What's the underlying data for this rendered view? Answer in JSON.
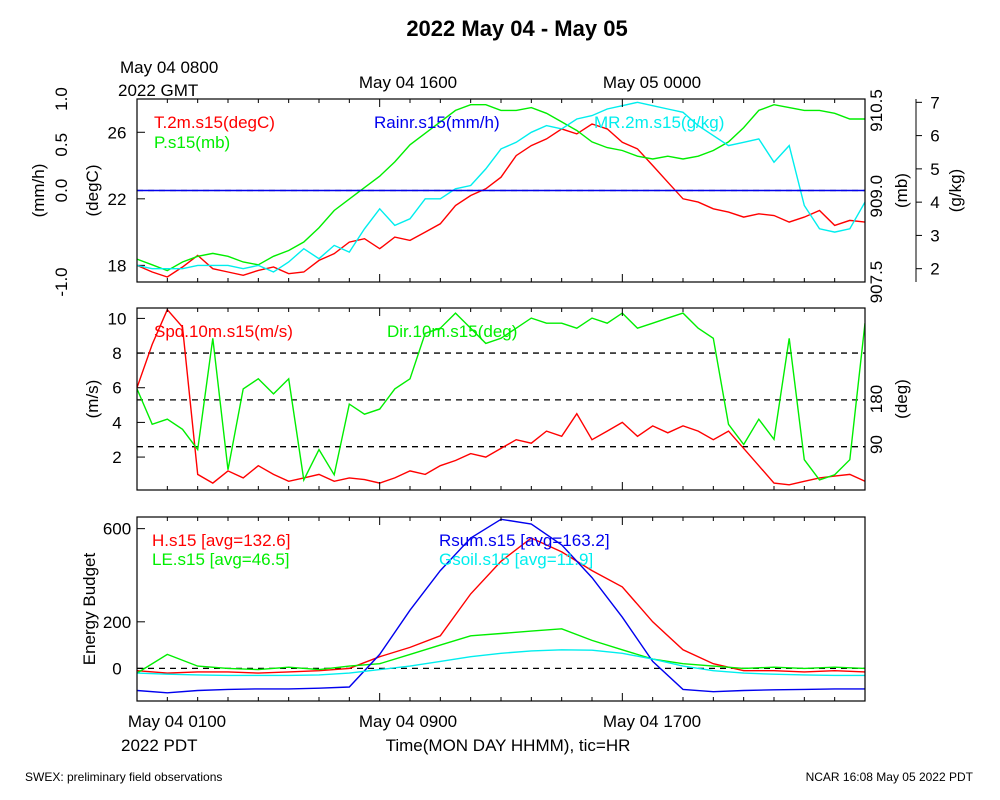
{
  "title": "2022 May 04 - May 05",
  "top_axis": {
    "start_label_line1": "May 04 0800",
    "start_label_line2": "2022 GMT",
    "tick_labels": [
      "May 04 1600",
      "May 05 0000"
    ]
  },
  "bottom_axis": {
    "tick_labels": [
      "May 04 0100",
      "May 04 0900",
      "May 04 1700"
    ],
    "start_label_line2": "2022 PDT",
    "xlabel": "Time(MON DAY HHMM), tic=HR"
  },
  "footer": {
    "left": "SWEX: preliminary field observations",
    "right": "NCAR 16:08 May 05 2022 PDT"
  },
  "colors": {
    "red": "#ff0000",
    "green": "#00ee00",
    "blue": "#0000ee",
    "cyan": "#00eeee",
    "black": "#000000"
  },
  "chart_data": [
    {
      "type": "line",
      "panel": "meteorology",
      "x_unit": "hours since May 04 0100 PDT",
      "xlim": [
        0,
        24
      ],
      "left_axes": [
        {
          "label": "(mm/h)",
          "ylim": [
            -1.0,
            1.0
          ],
          "ticks": [
            "-1.0",
            "0.0",
            "0.5",
            "1.0"
          ]
        },
        {
          "label": "(degC)",
          "ylim": [
            17,
            28
          ],
          "ticks": [
            "18",
            "22",
            "26"
          ]
        }
      ],
      "right_axes": [
        {
          "label": "(mb)",
          "ylim": [
            907.5,
            910.7
          ],
          "ticks": [
            "907.5",
            "909.0",
            "910.5"
          ]
        },
        {
          "label": "(g/kg)",
          "ylim": [
            1.6,
            7.1
          ],
          "ticks": [
            "2",
            "3",
            "4",
            "5",
            "6",
            "7"
          ]
        }
      ],
      "reference_lines": [
        {
          "y": 0.0,
          "axis": "(mm/h)",
          "style": "dashed"
        }
      ],
      "series": [
        {
          "name": "T.2m.s15(degC)",
          "axis": "(degC)",
          "color": "#ff0000",
          "x": [
            0,
            0.5,
            1,
            1.5,
            2,
            2.5,
            3,
            3.5,
            4,
            4.5,
            5,
            5.5,
            6,
            6.5,
            7,
            7.5,
            8,
            8.5,
            9,
            9.5,
            10,
            10.5,
            11,
            11.5,
            12,
            12.5,
            13,
            13.5,
            14,
            14.5,
            15,
            15.5,
            16,
            16.5,
            17,
            17.5,
            18,
            18.5,
            19,
            19.5,
            20,
            20.5,
            21,
            21.5,
            22,
            22.5,
            23,
            23.5,
            24
          ],
          "values": [
            18.0,
            17.6,
            17.3,
            17.9,
            18.6,
            17.8,
            17.6,
            17.4,
            17.7,
            17.9,
            17.5,
            17.6,
            18.3,
            18.7,
            19.4,
            19.6,
            19.0,
            19.7,
            19.5,
            20.0,
            20.5,
            21.6,
            22.2,
            22.6,
            23.3,
            24.6,
            25.2,
            25.6,
            26.2,
            25.9,
            26.5,
            26.2,
            25.4,
            25.0,
            24.0,
            23.0,
            22.0,
            21.8,
            21.4,
            21.2,
            20.9,
            21.1,
            21.0,
            20.6,
            20.9,
            21.3,
            20.4,
            20.7,
            20.6
          ]
        },
        {
          "name": "P.s15(mb)",
          "axis": "(mb)",
          "color": "#00ee00",
          "x": [
            0,
            0.5,
            1,
            1.5,
            2,
            2.5,
            3,
            3.5,
            4,
            4.5,
            5,
            5.5,
            6,
            6.5,
            7,
            7.5,
            8,
            8.5,
            9,
            9.5,
            10,
            10.5,
            11,
            11.5,
            12,
            12.5,
            13,
            13.5,
            14,
            14.5,
            15,
            15.5,
            16,
            16.5,
            17,
            17.5,
            18,
            18.5,
            19,
            19.5,
            20,
            20.5,
            21,
            21.5,
            22,
            22.5,
            23,
            23.5,
            24
          ],
          "values": [
            907.9,
            907.8,
            907.7,
            907.85,
            907.95,
            908.0,
            907.95,
            907.85,
            907.8,
            907.95,
            908.05,
            908.2,
            908.45,
            908.75,
            908.95,
            909.15,
            909.35,
            909.6,
            909.9,
            910.1,
            910.3,
            910.5,
            910.6,
            910.6,
            910.5,
            910.5,
            910.55,
            910.45,
            910.3,
            910.15,
            909.95,
            909.85,
            909.8,
            909.7,
            909.65,
            909.7,
            909.65,
            909.7,
            909.8,
            909.95,
            910.2,
            910.5,
            910.6,
            910.55,
            910.5,
            910.5,
            910.45,
            910.35,
            910.35
          ]
        },
        {
          "name": "MR.2m.s15(g/kg)",
          "axis": "(g/kg)",
          "color": "#00eeee",
          "x": [
            0,
            0.5,
            1,
            1.5,
            2,
            2.5,
            3,
            3.5,
            4,
            4.5,
            5,
            5.5,
            6,
            6.5,
            7,
            7.5,
            8,
            8.5,
            9,
            9.5,
            10,
            10.5,
            11,
            11.5,
            12,
            12.5,
            13,
            13.5,
            14,
            14.5,
            15,
            15.5,
            16,
            16.5,
            17,
            17.5,
            18,
            18.5,
            19,
            19.5,
            20,
            20.5,
            21,
            21.5,
            22,
            22.5,
            23,
            23.5,
            24
          ],
          "values": [
            2.1,
            2.0,
            2.0,
            2.0,
            2.1,
            2.1,
            2.1,
            2.0,
            2.1,
            1.9,
            2.2,
            2.6,
            2.3,
            2.7,
            2.5,
            3.2,
            3.8,
            3.3,
            3.5,
            4.1,
            4.1,
            4.4,
            4.5,
            5.0,
            5.6,
            5.8,
            6.1,
            6.3,
            6.2,
            6.5,
            6.6,
            6.8,
            6.9,
            7.0,
            6.9,
            6.8,
            6.7,
            6.3,
            6.0,
            5.7,
            5.8,
            5.9,
            5.2,
            5.7,
            3.9,
            3.2,
            3.1,
            3.2,
            4.0
          ]
        },
        {
          "name": "Rainr.s15(mm/h)",
          "axis": "(mm/h)",
          "color": "#0000ee",
          "x": [
            0,
            24
          ],
          "values": [
            0.0,
            0.0
          ]
        }
      ]
    },
    {
      "type": "line",
      "panel": "wind",
      "x_unit": "hours since May 04 0100 PDT",
      "xlim": [
        0,
        24
      ],
      "left_axes": [
        {
          "label": "(m/s)",
          "ylim": [
            0.1,
            10.6
          ],
          "ticks": [
            "2",
            "4",
            "6",
            "8",
            "10"
          ]
        }
      ],
      "right_axes": [
        {
          "label": "(deg)",
          "ylim": [
            0,
            360
          ],
          "ticks": [
            "90",
            "180"
          ]
        }
      ],
      "reference_lines": [
        {
          "y": 2.6,
          "axis": "(m/s)",
          "style": "dashed"
        },
        {
          "y": 5.3,
          "axis": "(m/s)",
          "style": "dashed"
        },
        {
          "y": 8.0,
          "axis": "(m/s)",
          "style": "dashed"
        }
      ],
      "series": [
        {
          "name": "Spd.10m.s15(m/s)",
          "axis": "(m/s)",
          "color": "#ff0000",
          "x": [
            0,
            0.5,
            1,
            1.5,
            2,
            2.5,
            3,
            3.5,
            4,
            4.5,
            5,
            5.5,
            6,
            6.5,
            7,
            7.5,
            8,
            8.5,
            9,
            9.5,
            10,
            10.5,
            11,
            11.5,
            12,
            12.5,
            13,
            13.5,
            14,
            14.5,
            15,
            15.5,
            16,
            16.5,
            17,
            17.5,
            18,
            18.5,
            19,
            19.5,
            20,
            20.5,
            21,
            21.5,
            22,
            22.5,
            23,
            23.5,
            24
          ],
          "values": [
            6.0,
            8.5,
            10.5,
            9.5,
            1.0,
            0.5,
            1.2,
            0.8,
            1.5,
            1.0,
            0.6,
            0.8,
            1.0,
            0.6,
            0.8,
            0.7,
            0.5,
            0.8,
            1.2,
            1.0,
            1.5,
            1.8,
            2.2,
            2.0,
            2.5,
            3.0,
            2.8,
            3.5,
            3.2,
            4.5,
            3.0,
            3.5,
            4.0,
            3.2,
            3.8,
            3.4,
            3.8,
            3.5,
            3.0,
            3.5,
            2.5,
            1.5,
            0.5,
            0.4,
            0.6,
            0.8,
            0.9,
            1.0,
            0.6
          ]
        },
        {
          "name": "Dir.10m.s15(deg)",
          "axis": "(deg)",
          "color": "#00ee00",
          "x": [
            0,
            0.5,
            1,
            1.5,
            2,
            2.5,
            3,
            3.5,
            4,
            4.5,
            5,
            5.5,
            6,
            6.5,
            7,
            7.5,
            8,
            8.5,
            9,
            9.5,
            10,
            10.5,
            11,
            11.5,
            12,
            12.5,
            13,
            13.5,
            14,
            14.5,
            15,
            15.5,
            16,
            16.5,
            17,
            17.5,
            18,
            18.5,
            19,
            19.5,
            20,
            20.5,
            21,
            21.5,
            22,
            22.5,
            23,
            23.5,
            24
          ],
          "values": [
            200,
            130,
            140,
            120,
            80,
            300,
            40,
            200,
            220,
            190,
            220,
            20,
            80,
            30,
            170,
            150,
            160,
            200,
            220,
            310,
            320,
            350,
            320,
            290,
            300,
            320,
            340,
            330,
            330,
            320,
            340,
            330,
            350,
            320,
            330,
            340,
            350,
            320,
            300,
            130,
            90,
            140,
            100,
            300,
            60,
            20,
            30,
            60,
            330
          ]
        }
      ]
    },
    {
      "type": "line",
      "panel": "energy",
      "x_unit": "hours since May 04 0100 PDT",
      "xlim": [
        0,
        24
      ],
      "left_axes": [
        {
          "label": "Energy Budget",
          "ylim": [
            -140,
            650
          ],
          "ticks": [
            "0",
            "200",
            "600"
          ]
        }
      ],
      "reference_lines": [
        {
          "y": 0,
          "axis": "Energy Budget",
          "style": "dashed"
        }
      ],
      "series": [
        {
          "name": "H.s15 [avg=132.6]",
          "color": "#ff0000",
          "x": [
            0,
            1,
            2,
            3,
            4,
            5,
            6,
            7,
            8,
            9,
            10,
            11,
            12,
            13,
            14,
            15,
            16,
            17,
            18,
            19,
            20,
            21,
            22,
            23,
            24
          ],
          "values": [
            -10,
            -20,
            -15,
            -15,
            -20,
            -15,
            -10,
            0,
            50,
            90,
            140,
            320,
            460,
            560,
            500,
            420,
            350,
            200,
            80,
            20,
            -10,
            -10,
            -15,
            -10,
            -15
          ]
        },
        {
          "name": "LE.s15 [avg=46.5]",
          "color": "#00ee00",
          "x": [
            0,
            1,
            2,
            3,
            4,
            5,
            6,
            7,
            8,
            9,
            10,
            11,
            12,
            13,
            14,
            15,
            16,
            17,
            18,
            19,
            20,
            21,
            22,
            23,
            24
          ],
          "values": [
            -20,
            60,
            10,
            0,
            -5,
            5,
            -5,
            10,
            20,
            60,
            100,
            140,
            150,
            160,
            170,
            120,
            80,
            40,
            20,
            10,
            0,
            5,
            0,
            5,
            0
          ]
        },
        {
          "name": "Rsum.s15 [avg=163.2]",
          "color": "#0000ee",
          "x": [
            0,
            1,
            2,
            3,
            4,
            5,
            6,
            7,
            8,
            9,
            10,
            11,
            12,
            13,
            14,
            15,
            16,
            17,
            18,
            19,
            20,
            21,
            22,
            23,
            24
          ],
          "values": [
            -95,
            -105,
            -95,
            -90,
            -88,
            -88,
            -85,
            -80,
            60,
            250,
            420,
            560,
            640,
            620,
            530,
            390,
            220,
            30,
            -90,
            -100,
            -95,
            -92,
            -90,
            -88,
            -88
          ]
        },
        {
          "name": "Gsoil.s15 [avg=11.9]",
          "color": "#00eeee",
          "x": [
            0,
            1,
            2,
            3,
            4,
            5,
            6,
            7,
            8,
            9,
            10,
            11,
            12,
            13,
            14,
            15,
            16,
            17,
            18,
            19,
            20,
            21,
            22,
            23,
            24
          ],
          "values": [
            -20,
            -25,
            -28,
            -30,
            -30,
            -30,
            -28,
            -20,
            -5,
            10,
            30,
            50,
            65,
            75,
            80,
            78,
            65,
            40,
            10,
            -10,
            -20,
            -25,
            -28,
            -30,
            -30
          ]
        }
      ]
    }
  ]
}
